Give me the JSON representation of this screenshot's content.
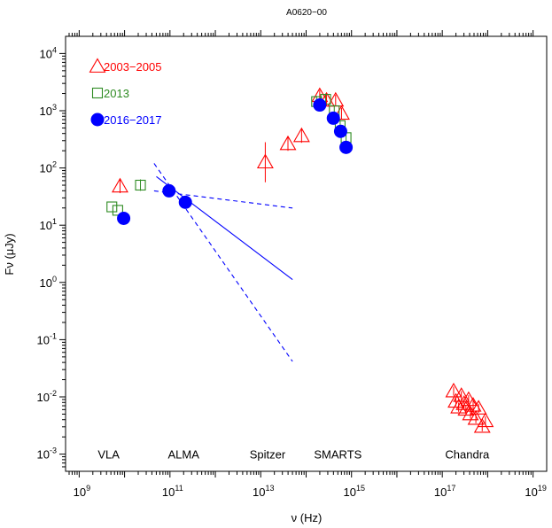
{
  "chart_data": {
    "type": "scatter",
    "title": "A0620−00",
    "xlabel": "ν (Hz)",
    "ylabel": "Fν (μJy)",
    "xscale": "log",
    "yscale": "log",
    "xlim_exp": [
      8.7,
      19.3
    ],
    "ylim_exp": [
      -3.3,
      4.3
    ],
    "x_ticks": [
      {
        "base": "10",
        "exp": "9",
        "value": 9
      },
      {
        "base": "10",
        "exp": "11",
        "value": 11
      },
      {
        "base": "10",
        "exp": "13",
        "value": 13
      },
      {
        "base": "10",
        "exp": "15",
        "value": 15
      },
      {
        "base": "10",
        "exp": "17",
        "value": 17
      },
      {
        "base": "10",
        "exp": "19",
        "value": 19
      }
    ],
    "y_ticks": [
      {
        "base": "10",
        "exp": "4",
        "value": 4
      },
      {
        "base": "10",
        "exp": "3",
        "value": 3
      },
      {
        "base": "10",
        "exp": "2",
        "value": 2
      },
      {
        "base": "10",
        "exp": "1",
        "value": 1
      },
      {
        "base": "10",
        "exp": "0",
        "value": 0
      },
      {
        "base": "10",
        "exp": "-1",
        "value": -1
      },
      {
        "base": "10",
        "exp": "-2",
        "value": -2
      },
      {
        "base": "10",
        "exp": "-3",
        "value": -3
      }
    ],
    "legend_position": "top-left",
    "series": [
      {
        "name": "2003−2005",
        "marker": "triangle-open",
        "color": "#ff0000",
        "points": [
          {
            "lx": 9.9,
            "ly": 1.68,
            "err": 0.12
          },
          {
            "lx": 13.1,
            "ly": 2.1,
            "err": 0.35
          },
          {
            "lx": 13.6,
            "ly": 2.42,
            "err": 0.12
          },
          {
            "lx": 13.9,
            "ly": 2.56,
            "err": 0.12
          },
          {
            "lx": 14.3,
            "ly": 3.26,
            "err": 0.1
          },
          {
            "lx": 14.45,
            "ly": 3.18,
            "err": 0.1
          },
          {
            "lx": 14.65,
            "ly": 3.18,
            "err": 0.1
          },
          {
            "lx": 14.78,
            "ly": 2.95,
            "err": 0.1
          },
          {
            "lx": 17.25,
            "ly": -1.9,
            "err": 0.08
          },
          {
            "lx": 17.3,
            "ly": -2.08,
            "err": 0.08
          },
          {
            "lx": 17.36,
            "ly": -2.18,
            "err": 0.08
          },
          {
            "lx": 17.42,
            "ly": -1.98,
            "err": 0.08
          },
          {
            "lx": 17.48,
            "ly": -2.12,
            "err": 0.08
          },
          {
            "lx": 17.52,
            "ly": -2.22,
            "err": 0.08
          },
          {
            "lx": 17.58,
            "ly": -2.05,
            "err": 0.08
          },
          {
            "lx": 17.62,
            "ly": -2.3,
            "err": 0.08
          },
          {
            "lx": 17.68,
            "ly": -2.15,
            "err": 0.08
          },
          {
            "lx": 17.74,
            "ly": -2.38,
            "err": 0.08
          },
          {
            "lx": 17.8,
            "ly": -2.2,
            "err": 0.08
          },
          {
            "lx": 17.88,
            "ly": -2.52,
            "err": 0.08
          },
          {
            "lx": 17.95,
            "ly": -2.42,
            "err": 0.08
          }
        ]
      },
      {
        "name": "2013",
        "marker": "square-open",
        "color": "#2e8b22",
        "points": [
          {
            "lx": 9.72,
            "ly": 1.32,
            "err": 0
          },
          {
            "lx": 9.85,
            "ly": 1.26,
            "err": 0
          },
          {
            "lx": 10.35,
            "ly": 1.7,
            "err": 0.1
          },
          {
            "lx": 14.23,
            "ly": 3.16,
            "err": 0.1
          },
          {
            "lx": 14.43,
            "ly": 3.2,
            "err": 0.1
          },
          {
            "lx": 14.62,
            "ly": 3.0,
            "err": 0.1
          },
          {
            "lx": 14.75,
            "ly": 2.74,
            "err": 0.1
          },
          {
            "lx": 14.88,
            "ly": 2.53,
            "err": 0.1
          }
        ]
      },
      {
        "name": "2016−2017",
        "marker": "circle-filled",
        "color": "#0000ff",
        "points": [
          {
            "lx": 9.98,
            "ly": 1.12
          },
          {
            "lx": 10.98,
            "ly": 1.6
          },
          {
            "lx": 11.34,
            "ly": 1.4
          },
          {
            "lx": 14.3,
            "ly": 3.1
          },
          {
            "lx": 14.6,
            "ly": 2.87
          },
          {
            "lx": 14.76,
            "ly": 2.64
          },
          {
            "lx": 14.88,
            "ly": 2.36
          }
        ]
      }
    ],
    "fit_lines": [
      {
        "style": "solid",
        "color": "#0000ff",
        "from": [
          10.7,
          1.85
        ],
        "to": [
          13.7,
          0.05
        ]
      },
      {
        "style": "dashed",
        "color": "#0000ff",
        "from": [
          10.65,
          1.6
        ],
        "to": [
          13.7,
          1.3
        ]
      },
      {
        "style": "dashed",
        "color": "#0000ff",
        "from": [
          10.65,
          2.08
        ],
        "to": [
          13.7,
          -1.38
        ]
      }
    ],
    "annotations": [
      {
        "text": "VLA",
        "lx": 9.65,
        "ly": -3.0
      },
      {
        "text": "ALMA",
        "lx": 11.3,
        "ly": -3.0
      },
      {
        "text": "Spitzer",
        "lx": 13.15,
        "ly": -3.0
      },
      {
        "text": "SMARTS",
        "lx": 14.7,
        "ly": -3.0
      },
      {
        "text": "Chandra",
        "lx": 17.55,
        "ly": -3.0
      }
    ]
  }
}
